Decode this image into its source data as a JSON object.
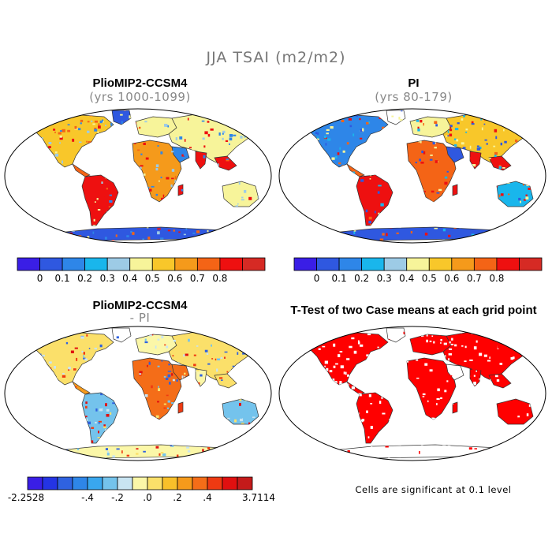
{
  "figure": {
    "title": "JJA TSAI (m2/m2)"
  },
  "panels": [
    {
      "title": "PlioMIP2-CCSM4",
      "subtitle": "(yrs 1000-1099)"
    },
    {
      "title": "PI",
      "subtitle": "(yrs 80-179)"
    },
    {
      "title": "PlioMIP2-CCSM4",
      "subtitle": "- PI"
    },
    {
      "title": "T-Test of two Case means at each grid point",
      "subtitle": ""
    }
  ],
  "colorbar_abs": {
    "colors": [
      "#3a1ee6",
      "#2f58e0",
      "#2e86e8",
      "#19b6ec",
      "#9dcbe6",
      "#f7f49a",
      "#f8c72a",
      "#f59a1b",
      "#f46416",
      "#ee1010",
      "#d62a24"
    ],
    "labels": [
      "0",
      "0.1",
      "0.2",
      "0.3",
      "0.4",
      "0.5",
      "0.6",
      "0.7",
      "0.8"
    ]
  },
  "colorbar_diff": {
    "colors": [
      "#3a1ee6",
      "#2434e4",
      "#2f62e0",
      "#2e86e8",
      "#39a7ee",
      "#74c3ec",
      "#c8e4f2",
      "#fbf7a8",
      "#fbe06a",
      "#f9c02a",
      "#f59a1b",
      "#f46d18",
      "#ee3a12",
      "#e01010",
      "#c41a1a"
    ],
    "labels": [
      "-2.2528",
      "-.4",
      "-.2",
      ".0",
      ".2",
      ".4",
      "3.7114"
    ]
  },
  "ttest_note": "Cells are significant at 0.1 level"
}
